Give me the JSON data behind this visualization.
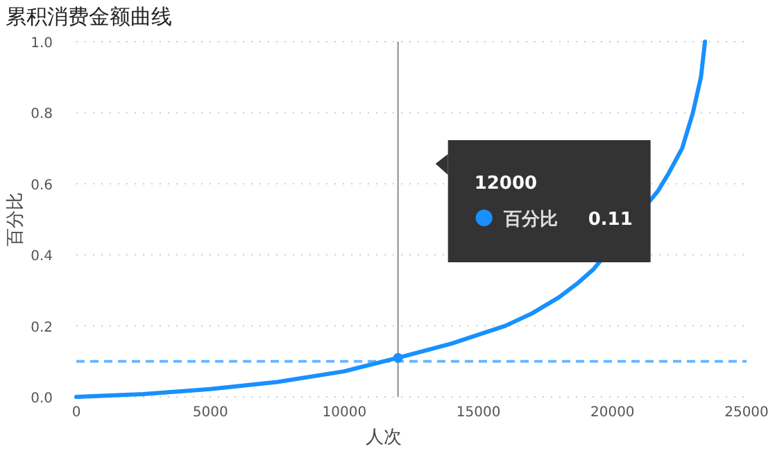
{
  "chart_data": {
    "type": "line",
    "title": "累积消费金额曲线",
    "xlabel": "人次",
    "ylabel": "百分比",
    "x": [
      0,
      2500,
      5000,
      7500,
      10000,
      12000,
      14000,
      16000,
      17000,
      18000,
      18700,
      19300,
      21700,
      22100,
      22600,
      23000,
      23300,
      23450
    ],
    "series": [
      {
        "name": "百分比",
        "color": "#1890ff",
        "values": [
          0,
          0.008,
          0.022,
          0.042,
          0.072,
          0.11,
          0.15,
          0.2,
          0.235,
          0.28,
          0.32,
          0.36,
          0.58,
          0.63,
          0.7,
          0.8,
          0.9,
          1.0
        ]
      }
    ],
    "xlim": [
      0,
      25000
    ],
    "xticks": [
      0,
      5000,
      10000,
      15000,
      20000,
      25000
    ],
    "ylim": [
      0,
      1.0
    ],
    "yticks": [
      {
        "value": 0,
        "label": "0.0"
      },
      {
        "value": 0.2,
        "label": "0.2"
      },
      {
        "value": 0.4,
        "label": "0.4"
      },
      {
        "value": 0.6,
        "label": "0.6"
      },
      {
        "value": 0.8,
        "label": "0.8"
      },
      {
        "value": 1.0,
        "label": "1.0"
      }
    ],
    "grid": "y",
    "marker": "none",
    "line_style": "solid",
    "ref_lines": [
      {
        "axis": "y",
        "value": 0.1,
        "color": "#69b7ff",
        "line_style": "dashed"
      },
      {
        "axis": "x",
        "value": 12000,
        "color": "#8c8c8c",
        "line_style": "solid"
      }
    ],
    "annotations": [
      "12000",
      "0.11"
    ]
  }
}
